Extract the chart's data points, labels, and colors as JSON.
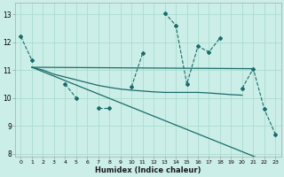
{
  "xlabel": "Humidex (Indice chaleur)",
  "bg_color": "#cceee8",
  "grid_color": "#aaddcc",
  "line_color": "#1a6b6b",
  "xlim": [
    -0.5,
    23.5
  ],
  "ylim": [
    7.9,
    13.4
  ],
  "yticks": [
    8,
    9,
    10,
    11,
    12,
    13
  ],
  "xticks": [
    0,
    1,
    2,
    3,
    4,
    5,
    6,
    7,
    8,
    9,
    10,
    11,
    12,
    13,
    14,
    15,
    16,
    17,
    18,
    19,
    20,
    21,
    22,
    23
  ],
  "line_dashed": {
    "x": [
      0,
      1,
      2,
      3,
      4,
      5,
      6,
      7,
      8,
      9,
      10,
      11,
      12,
      13,
      14,
      15,
      16,
      17,
      18,
      19,
      20,
      21,
      22,
      23
    ],
    "y": [
      12.2,
      11.35,
      null,
      null,
      10.5,
      10.0,
      null,
      9.65,
      9.65,
      null,
      10.4,
      11.6,
      null,
      13.05,
      12.6,
      10.5,
      11.85,
      11.65,
      12.15,
      null,
      10.35,
      11.05,
      9.6,
      8.7
    ]
  },
  "line_flat": {
    "x": [
      1,
      21
    ],
    "y": [
      11.1,
      11.05
    ]
  },
  "line_decline": {
    "x": [
      1,
      2,
      3,
      4,
      5,
      6,
      7,
      8,
      9,
      10,
      11,
      12,
      13,
      14,
      15,
      16,
      17,
      18,
      19,
      20
    ],
    "y": [
      11.1,
      11.0,
      10.85,
      10.75,
      10.65,
      10.55,
      10.45,
      10.38,
      10.32,
      10.28,
      10.25,
      10.22,
      10.2,
      10.2,
      10.2,
      10.2,
      10.18,
      10.15,
      10.12,
      10.1
    ]
  },
  "line_steep": {
    "x": [
      1,
      23
    ],
    "y": [
      11.1,
      7.6
    ]
  }
}
